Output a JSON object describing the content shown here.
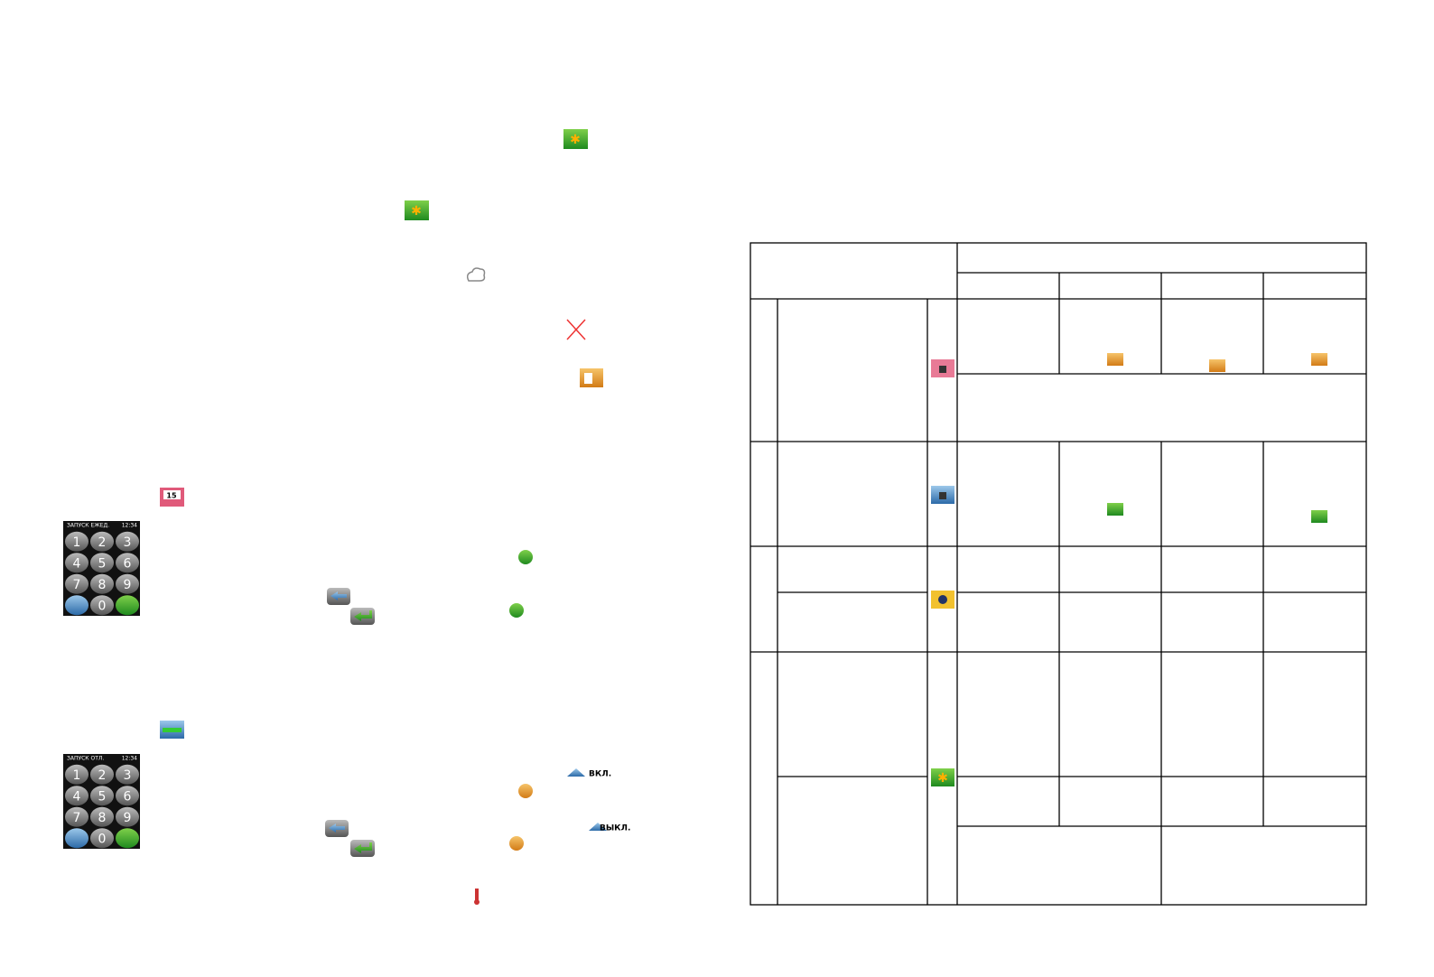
{
  "keypads": [
    {
      "title": "ЗАПУСК ЕЖЕД.",
      "time": "12:34",
      "keys": [
        "1",
        "2",
        "3",
        "4",
        "5",
        "6",
        "7",
        "8",
        "9",
        "0"
      ]
    },
    {
      "title": "ЗАПУСК ОТЛ.",
      "time": "12:34",
      "keys": [
        "1",
        "2",
        "3",
        "4",
        "5",
        "6",
        "7",
        "8",
        "9",
        "0"
      ]
    }
  ],
  "calendar_icon": "15",
  "labels": {
    "on": "ВКЛ.",
    "off": "ВЫКЛ."
  }
}
